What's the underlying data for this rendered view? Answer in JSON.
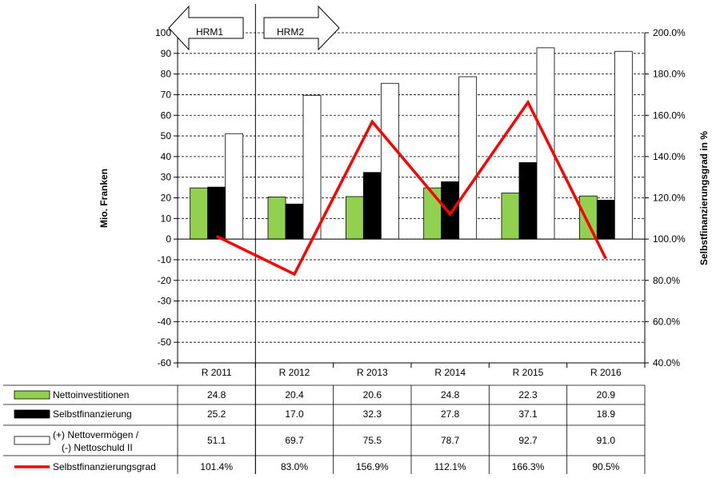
{
  "chart_data": {
    "type": "bar",
    "categories": [
      "R 2011",
      "R 2012",
      "R 2013",
      "R 2014",
      "R 2015",
      "R 2016"
    ],
    "series": [
      {
        "name": "Nettoinvestitionen",
        "kind": "bar",
        "axis": "left",
        "color": "#92d050",
        "values": [
          24.8,
          20.4,
          20.6,
          24.8,
          22.3,
          20.9
        ],
        "labels": [
          "24.8",
          "20.4",
          "20.6",
          "24.8",
          "22.3",
          "20.9"
        ]
      },
      {
        "name": "Selbstfinanzierung",
        "kind": "bar",
        "axis": "left",
        "color": "#000000",
        "values": [
          25.2,
          17.0,
          32.3,
          27.8,
          37.1,
          18.9
        ],
        "labels": [
          "25.2",
          "17.0",
          "32.3",
          "27.8",
          "37.1",
          "18.9"
        ]
      },
      {
        "name_lines": [
          "(+) Nettovermögen /",
          "(-) Nettoschuld II"
        ],
        "kind": "bar",
        "axis": "left",
        "color": "#ffffff",
        "values": [
          51.1,
          69.7,
          75.5,
          78.7,
          92.7,
          91.0
        ],
        "labels": [
          "51.1",
          "69.7",
          "75.5",
          "78.7",
          "92.7",
          "91.0"
        ]
      },
      {
        "name": "Selbstfinanzierungsgrad",
        "kind": "line",
        "axis": "right",
        "color": "#ff0000",
        "values": [
          101.4,
          83.0,
          156.9,
          112.1,
          166.3,
          90.5
        ],
        "labels": [
          "101.4%",
          "83.0%",
          "156.9%",
          "112.1%",
          "166.3%",
          "90.5%"
        ]
      }
    ],
    "ylabel": "Mio. Franken",
    "y2label": "Selbstfinanzierungsgrad in %",
    "ylim": [
      -60,
      100
    ],
    "y2lim": [
      40,
      200
    ],
    "yticks": [
      "100",
      "90",
      "80",
      "70",
      "60",
      "50",
      "40",
      "30",
      "20",
      "10",
      "0",
      "-10",
      "-20",
      "-30",
      "-40",
      "-50",
      "-60"
    ],
    "y2ticks": [
      "200.0%",
      "180.0%",
      "160.0%",
      "140.0%",
      "120.0%",
      "100.0%",
      "80.0%",
      "60.0%",
      "40.0%"
    ],
    "annotations": [
      "HRM1",
      "HRM2"
    ],
    "grid": true,
    "legend": "table below chart"
  }
}
